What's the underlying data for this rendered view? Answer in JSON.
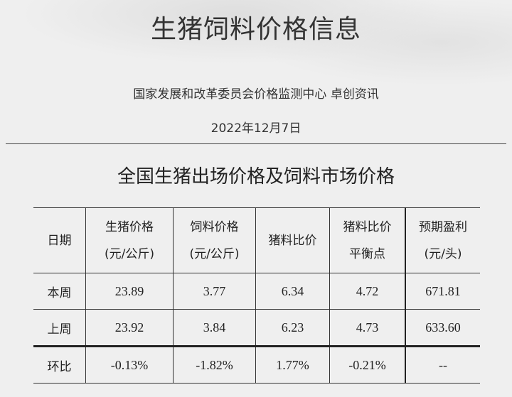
{
  "header": {
    "title": "生猪饲料价格信息",
    "source": "国家发展和改革委员会价格监测中心  卓创资讯",
    "date": "2022年12月7日"
  },
  "section_title": "全国生猪出场价格及饲料市场价格",
  "table": {
    "headers": [
      {
        "line1": "日期",
        "line2": ""
      },
      {
        "line1": "生猪价格",
        "line2": "(元/公斤)"
      },
      {
        "line1": "饲料价格",
        "line2": "(元/公斤)"
      },
      {
        "line1": "猪料比价",
        "line2": ""
      },
      {
        "line1": "猪料比价",
        "line2": "平衡点"
      },
      {
        "line1": "预期盈利",
        "line2": "(元/头)"
      }
    ],
    "rows": [
      [
        "本周",
        "23.89",
        "3.77",
        "6.34",
        "4.72",
        "671.81"
      ],
      [
        "上周",
        "23.92",
        "3.84",
        "6.23",
        "4.73",
        "633.60"
      ],
      [
        "环比",
        "-0.13%",
        "-1.82%",
        "1.77%",
        "-0.21%",
        "--"
      ]
    ]
  }
}
